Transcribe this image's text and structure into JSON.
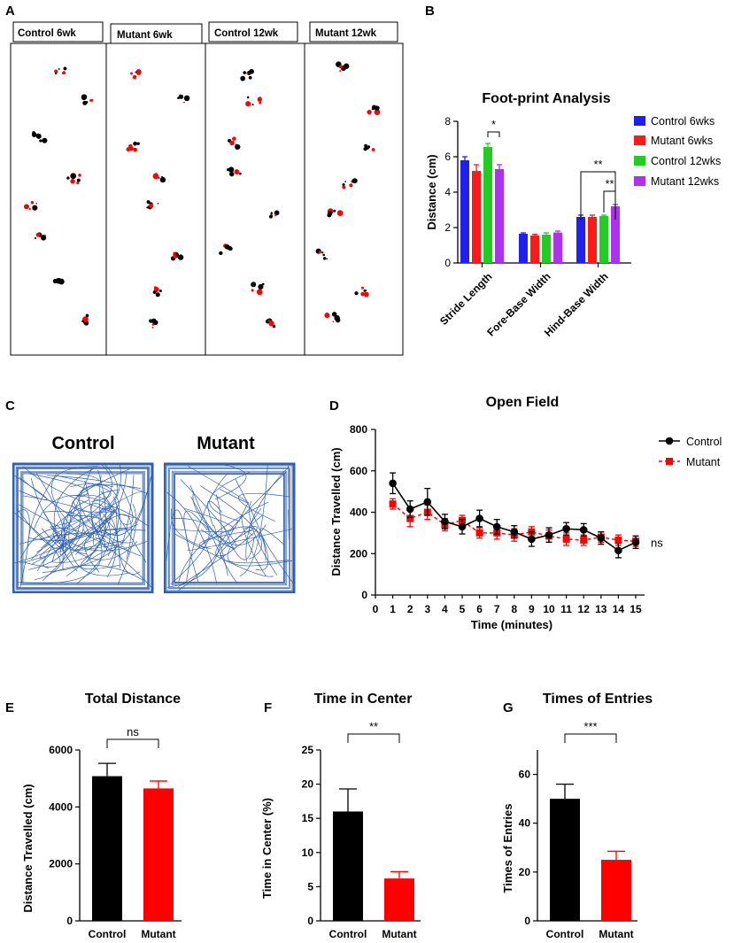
{
  "panel_letters": [
    "A",
    "B",
    "C",
    "D",
    "E",
    "F",
    "G"
  ],
  "colors": {
    "control_6wk": "#1f1ff0",
    "mutant_6wk": "#ff1a1a",
    "control_12wk": "#22cc22",
    "mutant_12wk": "#b030f0",
    "track": "#2f5fb0",
    "black": "#000000",
    "red": "#ff0000"
  },
  "footprint_headers": [
    "Control 6wk",
    "Mutant 6wk",
    "Control 12wk",
    "Mutant 12wk"
  ],
  "open_field_tracks": {
    "left_label": "Control",
    "right_label": "Mutant"
  },
  "chart_data": [
    {
      "panel": "B",
      "type": "bar",
      "title": "Foot-print Analysis",
      "xlabel": "",
      "ylabel": "Distance (cm)",
      "ylim": [
        0,
        8
      ],
      "yticks": [
        "0",
        "2",
        "4",
        "6",
        "8"
      ],
      "categories": [
        "Stride Length",
        "Fore-Base Width",
        "Hind-Base Width"
      ],
      "series": [
        {
          "name": "Control 6wks",
          "values": [
            5.8,
            1.65,
            2.6
          ],
          "errors": [
            0.2,
            0.05,
            0.1
          ]
        },
        {
          "name": "Mutant 6wks",
          "values": [
            5.2,
            1.55,
            2.6
          ],
          "errors": [
            0.35,
            0.07,
            0.1
          ]
        },
        {
          "name": "Control 12wks",
          "values": [
            6.55,
            1.6,
            2.65
          ],
          "errors": [
            0.2,
            0.1,
            0.05
          ]
        },
        {
          "name": "Mutant 12wks",
          "values": [
            5.3,
            1.72,
            3.2
          ],
          "errors": [
            0.25,
            0.08,
            0.1
          ]
        }
      ],
      "annotations": [
        "*",
        "**",
        "**"
      ]
    },
    {
      "panel": "D",
      "type": "line",
      "title": "Open Field",
      "xlabel": "Time (minutes)",
      "ylabel": "Distance Travelled (cm)",
      "ylim": [
        0,
        800
      ],
      "yticks": [
        "0",
        "200",
        "400",
        "600",
        "800"
      ],
      "x": [
        1,
        2,
        3,
        4,
        5,
        6,
        7,
        8,
        9,
        10,
        11,
        12,
        13,
        14,
        15
      ],
      "xticks": [
        "0",
        "1",
        "2",
        "3",
        "4",
        "5",
        "6",
        "7",
        "8",
        "9",
        "10",
        "11",
        "12",
        "13",
        "14",
        "15"
      ],
      "series": [
        {
          "name": "Control",
          "values": [
            540,
            415,
            450,
            355,
            330,
            370,
            330,
            305,
            270,
            290,
            320,
            315,
            275,
            215,
            255
          ],
          "errors": [
            50,
            40,
            65,
            35,
            35,
            40,
            35,
            30,
            35,
            35,
            30,
            30,
            30,
            35,
            30
          ]
        },
        {
          "name": "Mutant",
          "values": [
            440,
            370,
            400,
            340,
            360,
            300,
            300,
            290,
            305,
            285,
            270,
            265,
            280,
            265,
            260
          ],
          "errors": [
            25,
            40,
            35,
            30,
            25,
            25,
            30,
            30,
            25,
            30,
            30,
            25,
            25,
            25,
            25
          ]
        }
      ],
      "annotation": "ns"
    },
    {
      "panel": "E",
      "type": "bar",
      "title": "Total Distance",
      "xlabel": "",
      "ylabel": "Distance Travelled (cm)",
      "ylim": [
        0,
        6000
      ],
      "yticks": [
        "0",
        "2000",
        "4000",
        "6000"
      ],
      "categories": [
        "Control",
        "Mutant"
      ],
      "values": [
        5080,
        4650
      ],
      "errors": [
        450,
        260
      ],
      "annotation": "ns"
    },
    {
      "panel": "F",
      "type": "bar",
      "title": "Time in Center",
      "xlabel": "",
      "ylabel": "Time in Center (%)",
      "ylim": [
        0,
        25
      ],
      "yticks": [
        "0",
        "5",
        "10",
        "15",
        "20",
        "25"
      ],
      "categories": [
        "Control",
        "Mutant"
      ],
      "values": [
        16,
        6.2
      ],
      "errors": [
        3.3,
        1.0
      ],
      "annotation": "**"
    },
    {
      "panel": "G",
      "type": "bar",
      "title": "Times of Entries",
      "xlabel": "",
      "ylabel": "Times of Entries",
      "ylim": [
        0,
        70
      ],
      "yticks": [
        "0",
        "20",
        "40",
        "60"
      ],
      "categories": [
        "Control",
        "Mutant"
      ],
      "values": [
        50,
        25
      ],
      "errors": [
        6,
        3.5
      ],
      "annotation": "***"
    }
  ]
}
